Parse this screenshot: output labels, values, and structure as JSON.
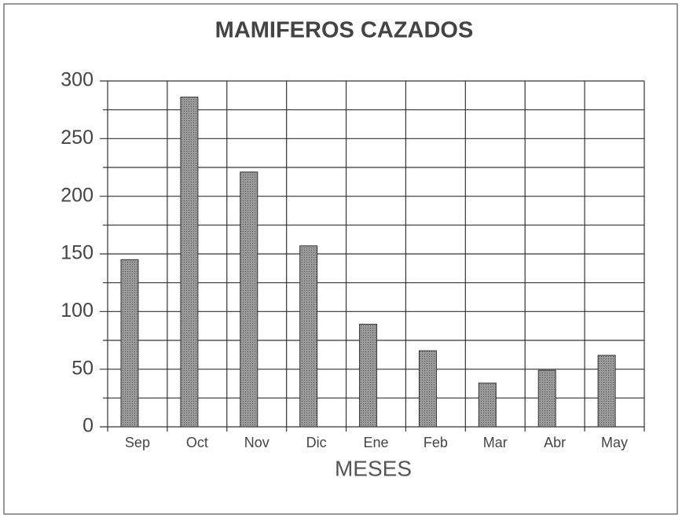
{
  "chart_data": {
    "type": "bar",
    "title": "MAMIFEROS CAZADOS",
    "x_label": "MESES",
    "categories": [
      "Sep",
      "Oct",
      "Nov",
      "Dic",
      "Ene",
      "Feb",
      "Mar",
      "Abr",
      "May"
    ],
    "values": [
      145,
      286,
      221,
      157,
      89,
      66,
      38,
      49,
      62
    ],
    "color": "#8a8a8a",
    "ylim": [
      0,
      300
    ],
    "yticks": [
      0,
      50,
      100,
      150,
      200,
      250,
      300
    ],
    "y_minor_ticks": [
      25,
      75,
      125,
      175,
      225,
      275
    ],
    "grid": true
  }
}
